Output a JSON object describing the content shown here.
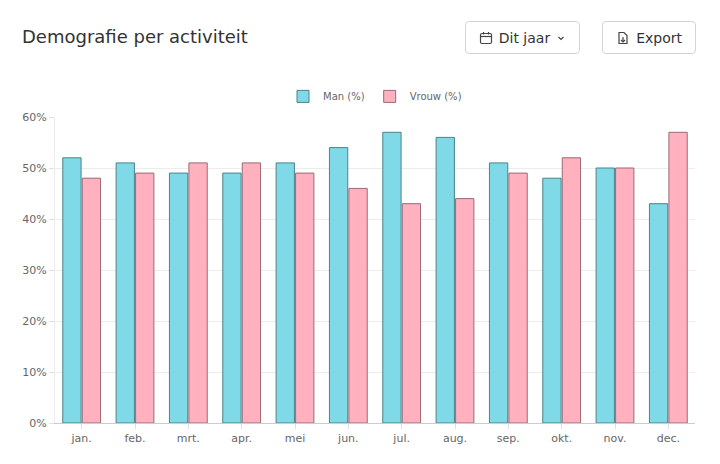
{
  "header": {
    "buttons": [
      "Dit jaar",
      "Export"
    ]
  },
  "chart_data": {
    "type": "bar",
    "title": "Demografie per activiteit",
    "categories": [
      "jan.",
      "feb.",
      "mrt.",
      "apr.",
      "mei",
      "jun.",
      "jul.",
      "aug.",
      "sep.",
      "okt.",
      "nov.",
      "dec."
    ],
    "series": [
      {
        "name": "Man (%)",
        "color": "#7fd9e6",
        "values": [
          52,
          51,
          49,
          49,
          51,
          54,
          57,
          56,
          51,
          48,
          50,
          43
        ]
      },
      {
        "name": "Vrouw (%)",
        "color": "#ffb1bf",
        "values": [
          48,
          49,
          51,
          51,
          49,
          46,
          43,
          44,
          49,
          52,
          50,
          57
        ]
      }
    ],
    "ylim": [
      0,
      60
    ],
    "yticks": [
      {
        "value": 0,
        "label": "0%"
      },
      {
        "value": 10,
        "label": "10%"
      },
      {
        "value": 20,
        "label": "20%"
      },
      {
        "value": 30,
        "label": "30%"
      },
      {
        "value": 40,
        "label": "40%"
      },
      {
        "value": 50,
        "label": "50%"
      },
      {
        "value": 60,
        "label": "60%"
      }
    ],
    "grid": true,
    "legend": "top"
  }
}
